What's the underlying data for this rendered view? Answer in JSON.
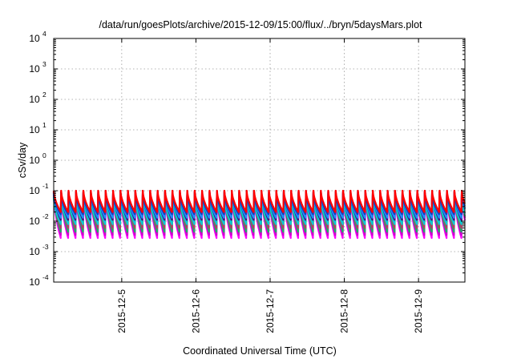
{
  "chart_data": {
    "type": "line",
    "title": "/data/run/goesPlots/archive/2015-12-09/15:00/flux/../bryn/5daysMars.plot",
    "xlabel": "Coordinated Universal Time (UTC)",
    "ylabel": "cSv/day",
    "yscale": "log",
    "ylim": [
      0.0001,
      10000
    ],
    "xlim": [
      "2015-12-04T02:00",
      "2015-12-09T15:00"
    ],
    "grid": true,
    "x_ticks": [
      {
        "label": "2015-12-5",
        "date": "2015-12-05T00:00"
      },
      {
        "label": "2015-12-6",
        "date": "2015-12-06T00:00"
      },
      {
        "label": "2015-12-7",
        "date": "2015-12-07T00:00"
      },
      {
        "label": "2015-12-8",
        "date": "2015-12-08T00:00"
      },
      {
        "label": "2015-12-9",
        "date": "2015-12-09T00:00"
      }
    ],
    "y_ticks": [
      {
        "base": "10",
        "exp": "-4",
        "value": 0.0001
      },
      {
        "base": "10",
        "exp": "-3",
        "value": 0.001
      },
      {
        "base": "10",
        "exp": "-2",
        "value": 0.01
      },
      {
        "base": "10",
        "exp": "-1",
        "value": 0.1
      },
      {
        "base": "10",
        "exp": "0",
        "value": 1
      },
      {
        "base": "10",
        "exp": "1",
        "value": 10
      },
      {
        "base": "10",
        "exp": "2",
        "value": 100
      },
      {
        "base": "10",
        "exp": "3",
        "value": 1000
      },
      {
        "base": "10",
        "exp": "4",
        "value": 10000
      }
    ],
    "pattern": "sawtooth, approx. 10 cycles per day",
    "series": [
      {
        "color": "#ff00ff",
        "peak": 0.08,
        "trough": 0.0028
      },
      {
        "color": "#cc00cc",
        "peak": 0.09,
        "trough": 0.0035
      },
      {
        "color": "#22aa66",
        "peak": 0.085,
        "trough": 0.0045
      },
      {
        "color": "#b04060",
        "peak": 0.1,
        "trough": 0.006
      },
      {
        "color": "#00d0d0",
        "peak": 0.06,
        "trough": 0.008
      },
      {
        "color": "#4b0082",
        "peak": 0.09,
        "trough": 0.011
      },
      {
        "color": "#1e90ff",
        "peak": 0.08,
        "trough": 0.013
      },
      {
        "color": "#1040c0",
        "peak": 0.075,
        "trough": 0.017
      },
      {
        "color": "#ff0000",
        "peak": 0.1,
        "trough": 0.02
      }
    ]
  }
}
